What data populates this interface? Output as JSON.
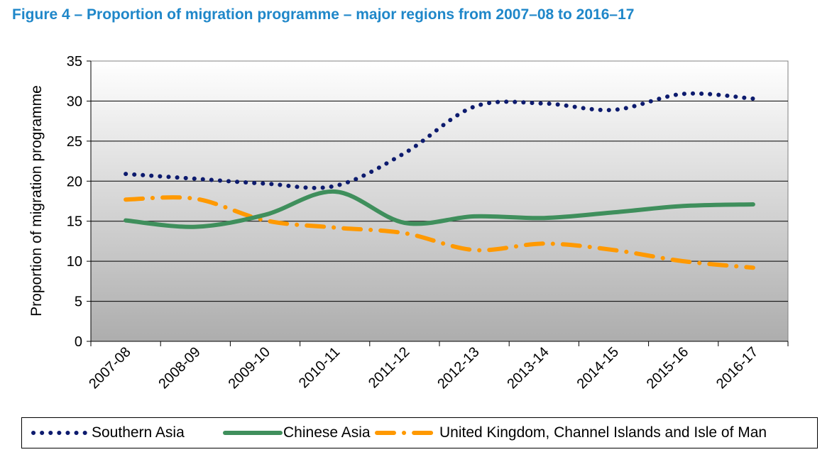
{
  "title": "Figure 4 – Proportion of migration programme – major regions from 2007–08 to 2016–17",
  "chart_data": {
    "type": "line",
    "title": "Figure 4 – Proportion of migration programme – major regions from 2007–08 to 2016–17",
    "xlabel": "",
    "ylabel": "Proportion of migration programme",
    "ylim": [
      0,
      35
    ],
    "yticks": [
      0,
      5,
      10,
      15,
      20,
      25,
      30,
      35
    ],
    "grid": true,
    "legend_position": "bottom",
    "categories": [
      "2007-08",
      "2008-09",
      "2009-10",
      "2010-11",
      "2011-12",
      "2012-13",
      "2013-14",
      "2014-15",
      "2015-16",
      "2016-17"
    ],
    "series": [
      {
        "name": "Southern Asia",
        "values": [
          20.9,
          20.3,
          19.7,
          19.4,
          23.5,
          29.3,
          29.7,
          28.9,
          30.9,
          30.3
        ],
        "color": "#0d1b6e",
        "style": "dotted"
      },
      {
        "name": "Chinese Asia",
        "values": [
          15.1,
          14.3,
          15.8,
          18.7,
          14.8,
          15.6,
          15.4,
          16.1,
          16.9,
          17.1
        ],
        "color": "#3f8f5c",
        "style": "solid"
      },
      {
        "name": "United Kingdom, Channel Islands and Isle of Man",
        "values": [
          17.7,
          17.8,
          15.1,
          14.2,
          13.5,
          11.4,
          12.2,
          11.4,
          10.0,
          9.2
        ],
        "color": "#ff9900",
        "style": "dash-dot"
      }
    ]
  }
}
